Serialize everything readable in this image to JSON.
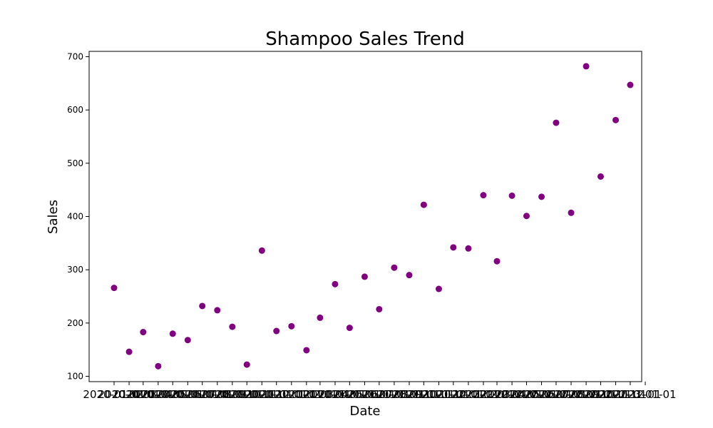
{
  "chart_data": {
    "type": "scatter",
    "title": "Shampoo Sales Trend",
    "xlabel": "Date",
    "ylabel": "Sales",
    "marker_color": "#800080",
    "grid": false,
    "ylim": [
      90,
      710
    ],
    "yticks": [
      100,
      200,
      300,
      400,
      500,
      600,
      700
    ],
    "x": [
      "2020-01-01",
      "2020-02-01",
      "2020-03-01",
      "2020-04-01",
      "2020-05-01",
      "2020-06-01",
      "2020-07-01",
      "2020-08-01",
      "2020-09-01",
      "2020-10-01",
      "2020-11-01",
      "2020-12-01",
      "2021-01-01",
      "2021-02-01",
      "2021-03-01",
      "2021-04-01",
      "2021-05-01",
      "2021-06-01",
      "2021-07-01",
      "2021-08-01",
      "2021-09-01",
      "2021-10-01",
      "2021-11-01",
      "2021-12-01",
      "2022-01-01",
      "2022-02-01",
      "2022-03-01",
      "2022-04-01",
      "2022-05-01",
      "2022-06-01",
      "2022-07-01",
      "2022-08-01",
      "2022-09-01",
      "2022-10-01",
      "2022-11-01",
      "2022-12-01"
    ],
    "y": [
      266,
      146,
      183,
      119,
      180,
      168,
      232,
      224,
      193,
      122,
      336,
      185,
      194,
      149,
      210,
      273,
      191,
      287,
      226,
      304,
      290,
      422,
      264,
      342,
      340,
      440,
      316,
      439,
      401,
      437,
      576,
      407,
      682,
      475,
      581,
      647
    ],
    "xticks": [
      "2020-01-01",
      "2020-02-01",
      "2020-03-01",
      "2020-04-01",
      "2020-05-01",
      "2020-06-01",
      "2020-07-01",
      "2020-08-01",
      "2020-09-01",
      "2020-10-01",
      "2020-11-01",
      "2020-12-01",
      "2021-01-01",
      "2021-02-01",
      "2021-03-01",
      "2021-04-01",
      "2021-05-01",
      "2021-06-01",
      "2021-07-01",
      "2021-08-01",
      "2021-09-01",
      "2021-10-01",
      "2021-11-01",
      "2021-12-01",
      "2022-01-01",
      "2022-02-01",
      "2022-03-01",
      "2022-04-01",
      "2022-05-01",
      "2022-06-01",
      "2022-07-01",
      "2022-08-01",
      "2022-09-01",
      "2022-10-01",
      "2022-11-01",
      "2022-12-01",
      "2023-01-01"
    ]
  }
}
